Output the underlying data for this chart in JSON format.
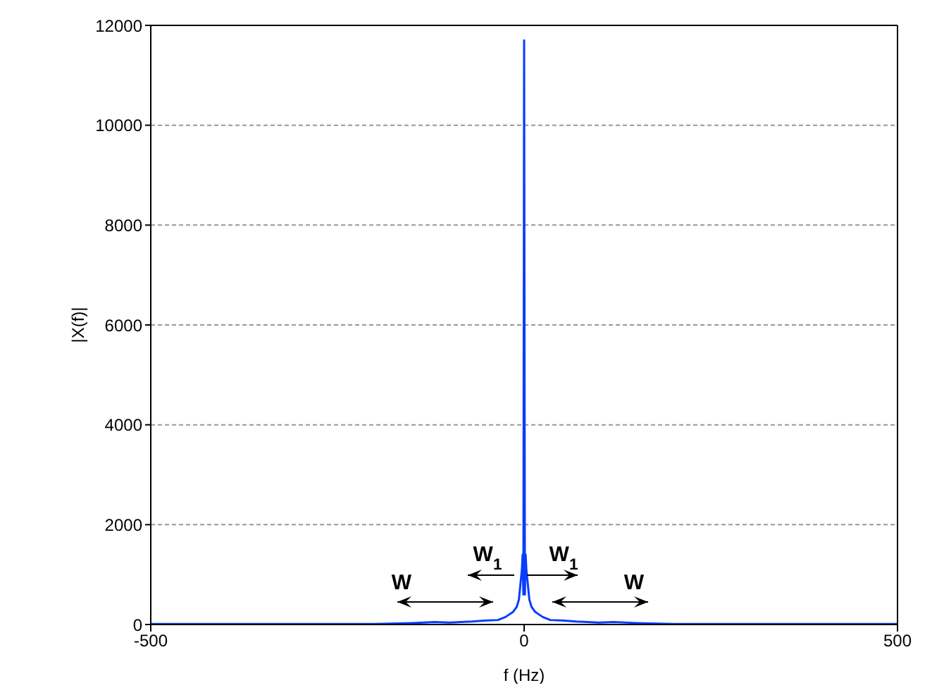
{
  "chart_data": {
    "type": "line",
    "xlabel": "f (Hz)",
    "ylabel": "|X(f)|",
    "x": [
      -500,
      -200,
      -150,
      -120,
      -100,
      -70,
      -50,
      -35,
      -25,
      -15,
      -10,
      -7,
      -5,
      -3,
      -2,
      -1,
      0,
      1,
      2,
      3,
      5,
      7,
      10,
      15,
      25,
      35,
      50,
      70,
      100,
      120,
      150,
      200,
      500
    ],
    "series": [
      {
        "color": "#0a3cff",
        "values": [
          10,
          10,
          30,
          50,
          40,
          60,
          80,
          90,
          150,
          250,
          350,
          500,
          800,
          1100,
          1400,
          600,
          11700,
          600,
          1400,
          1100,
          800,
          500,
          350,
          250,
          150,
          90,
          80,
          60,
          40,
          50,
          30,
          10,
          10
        ]
      }
    ],
    "xlim": [
      -500,
      500
    ],
    "xticks": [
      -500,
      0,
      500
    ],
    "ylim": [
      0,
      12000
    ],
    "yticks": [
      0,
      2000,
      4000,
      6000,
      8000,
      10000,
      12000
    ],
    "grid": "y",
    "marker": "none",
    "line_style": "solid",
    "annotations": [
      "W",
      "W$_{1}$",
      "W$_{1}$",
      "W"
    ]
  }
}
